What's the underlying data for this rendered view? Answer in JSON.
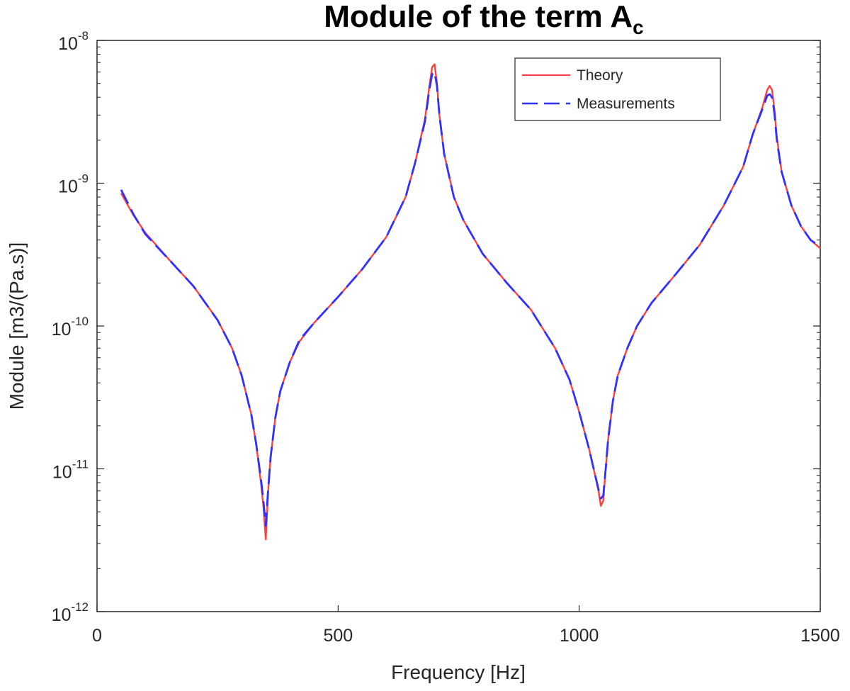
{
  "chart_data": {
    "type": "line",
    "title": {
      "base": "Module of the term A",
      "subscript": "c"
    },
    "xlabel": "Frequency [Hz]",
    "ylabel": "Module [m3/(Pa.s)]",
    "xlim": [
      0,
      1500
    ],
    "ylim": [
      1e-12,
      1e-08
    ],
    "yscale": "log",
    "grid": false,
    "legend_position": "top-right",
    "x_ticks": [
      {
        "value": 0,
        "label": "0"
      },
      {
        "value": 500,
        "label": "500"
      },
      {
        "value": 1000,
        "label": "1000"
      },
      {
        "value": 1500,
        "label": "1500"
      }
    ],
    "y_ticks": [
      {
        "value": 1e-12,
        "base": "10",
        "exp": "-12"
      },
      {
        "value": 1e-11,
        "base": "10",
        "exp": "-11"
      },
      {
        "value": 1e-10,
        "base": "10",
        "exp": "-10"
      },
      {
        "value": 1e-09,
        "base": "10",
        "exp": "-9"
      },
      {
        "value": 1e-08,
        "base": "10",
        "exp": "-8"
      }
    ],
    "series": [
      {
        "name": "Theory",
        "color": "#ff4040",
        "style": "solid",
        "x": [
          50,
          75,
          100,
          150,
          200,
          250,
          280,
          300,
          320,
          330,
          340,
          345,
          350,
          355,
          360,
          370,
          380,
          400,
          420,
          450,
          500,
          550,
          600,
          640,
          660,
          680,
          690,
          695,
          700,
          705,
          710,
          720,
          740,
          760,
          800,
          850,
          900,
          950,
          980,
          1000,
          1020,
          1030,
          1040,
          1045,
          1050,
          1055,
          1060,
          1070,
          1080,
          1100,
          1120,
          1150,
          1200,
          1250,
          1300,
          1340,
          1360,
          1380,
          1390,
          1395,
          1400,
          1405,
          1410,
          1420,
          1440,
          1460,
          1480,
          1500
        ],
        "y": [
          8.5e-10,
          6e-10,
          4.5e-10,
          2.9e-10,
          1.9e-10,
          1.1e-10,
          7e-11,
          4.5e-11,
          2.4e-11,
          1.5e-11,
          8e-12,
          5.5e-12,
          3.2e-12,
          7e-12,
          1.2e-11,
          2.3e-11,
          3.5e-11,
          5.6e-11,
          7.8e-11,
          1.05e-10,
          1.6e-10,
          2.5e-10,
          4.2e-10,
          8e-10,
          1.4e-09,
          2.8e-09,
          5e-09,
          6.5e-09,
          6.8e-09,
          5e-09,
          3e-09,
          1.6e-09,
          8e-10,
          5.5e-10,
          3.2e-10,
          2e-10,
          1.3e-10,
          7e-11,
          4.2e-11,
          2.5e-11,
          1.4e-11,
          1e-11,
          7e-12,
          5.5e-12,
          6e-12,
          1e-11,
          1.6e-11,
          3e-11,
          4.5e-11,
          7e-11,
          1e-10,
          1.45e-10,
          2.3e-10,
          3.7e-10,
          7e-10,
          1.3e-09,
          2.2e-09,
          3.4e-09,
          4.5e-09,
          4.8e-09,
          4.5e-09,
          3.3e-09,
          2.1e-09,
          1.2e-09,
          7e-10,
          5e-10,
          4e-10,
          3.5e-10
        ]
      },
      {
        "name": "Measurements",
        "color": "#3030ff",
        "style": "dashed",
        "x": [
          50,
          75,
          100,
          150,
          200,
          250,
          280,
          300,
          320,
          330,
          340,
          345,
          350,
          355,
          360,
          370,
          380,
          400,
          420,
          450,
          500,
          550,
          600,
          640,
          660,
          680,
          690,
          695,
          700,
          705,
          710,
          720,
          740,
          760,
          800,
          850,
          900,
          950,
          980,
          1000,
          1020,
          1030,
          1040,
          1045,
          1050,
          1055,
          1060,
          1070,
          1080,
          1100,
          1120,
          1150,
          1200,
          1250,
          1300,
          1340,
          1360,
          1380,
          1390,
          1395,
          1400,
          1405,
          1410,
          1420,
          1440,
          1460,
          1480,
          1500
        ],
        "y": [
          9e-10,
          6.1e-10,
          4.4e-10,
          2.9e-10,
          1.9e-10,
          1.1e-10,
          7e-11,
          4.5e-11,
          2.4e-11,
          1.5e-11,
          8.5e-12,
          6e-12,
          4e-12,
          7.2e-12,
          1.2e-11,
          2.3e-11,
          3.5e-11,
          5.6e-11,
          8e-11,
          1.05e-10,
          1.6e-10,
          2.5e-10,
          4.2e-10,
          8e-10,
          1.4e-09,
          2.7e-09,
          4.7e-09,
          5.8e-09,
          6e-09,
          4.8e-09,
          3e-09,
          1.6e-09,
          8e-10,
          5.5e-10,
          3.2e-10,
          2e-10,
          1.3e-10,
          7e-11,
          4.2e-11,
          2.5e-11,
          1.4e-11,
          1e-11,
          7.2e-12,
          6.2e-12,
          6.5e-12,
          1e-11,
          1.6e-11,
          3e-11,
          4.5e-11,
          7e-11,
          1e-10,
          1.45e-10,
          2.3e-10,
          3.7e-10,
          7e-10,
          1.3e-09,
          2.2e-09,
          3.3e-09,
          4.1e-09,
          4.2e-09,
          4e-09,
          3.1e-09,
          2e-09,
          1.2e-09,
          7e-10,
          5e-10,
          4e-10,
          3.6e-10
        ]
      }
    ]
  }
}
